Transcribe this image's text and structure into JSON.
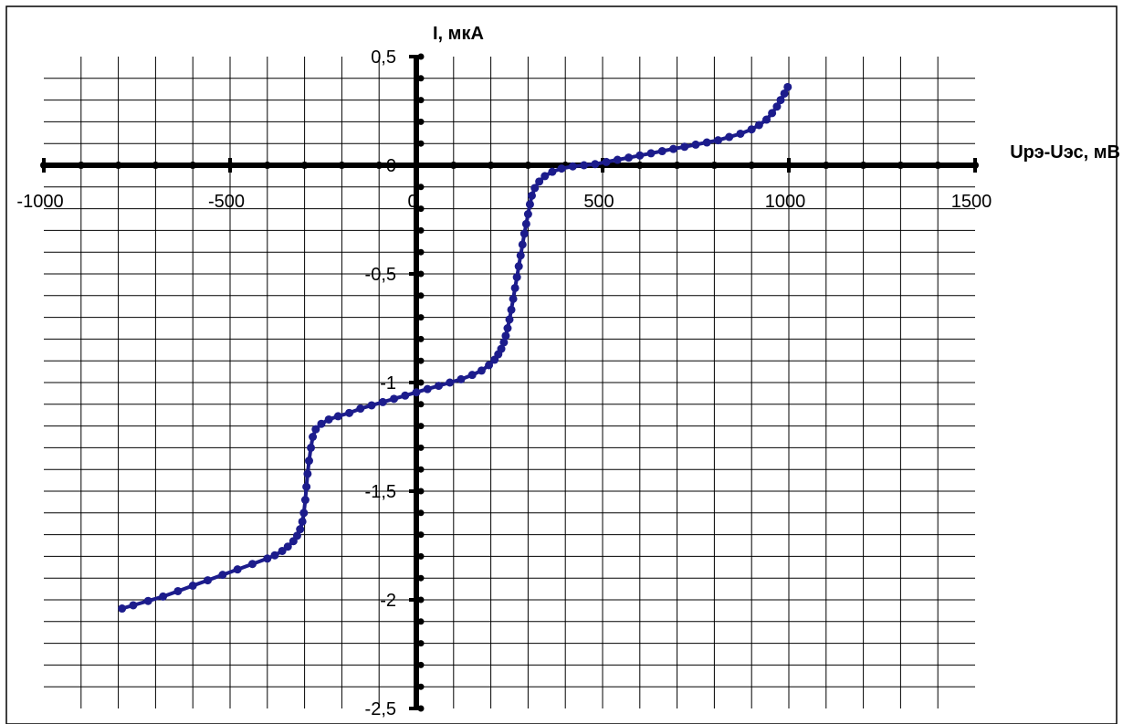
{
  "chart_data": {
    "type": "scatter",
    "title": "",
    "xlabel": "Uрэ-Uэс, мВ",
    "ylabel": "I, мкА",
    "xlim": [
      -1000,
      1500
    ],
    "ylim": [
      -2.5,
      0.5
    ],
    "x_major_ticks": [
      -1000,
      -500,
      0,
      500,
      1000,
      1500
    ],
    "x_tick_labels": [
      "-1000",
      "-500",
      "0",
      "500",
      "1000",
      "1500"
    ],
    "x_minor_step": 100,
    "y_major_ticks": [
      0.5,
      0,
      -0.5,
      -1,
      -1.5,
      -2,
      -2.5
    ],
    "y_tick_labels": [
      "0,5",
      "0",
      "-0,5",
      "-1",
      "-1,5",
      "-2",
      "-2,5"
    ],
    "y_minor_step": 0.1,
    "grid": true,
    "legend": "none",
    "series": [
      {
        "color": "#1c1c8c",
        "marker": "circle",
        "points": [
          [
            -790,
            -2.04
          ],
          [
            -760,
            -2.025
          ],
          [
            -720,
            -2.005
          ],
          [
            -680,
            -1.985
          ],
          [
            -640,
            -1.96
          ],
          [
            -600,
            -1.935
          ],
          [
            -560,
            -1.91
          ],
          [
            -520,
            -1.885
          ],
          [
            -480,
            -1.86
          ],
          [
            -440,
            -1.835
          ],
          [
            -400,
            -1.81
          ],
          [
            -380,
            -1.795
          ],
          [
            -360,
            -1.775
          ],
          [
            -345,
            -1.755
          ],
          [
            -330,
            -1.73
          ],
          [
            -320,
            -1.705
          ],
          [
            -312,
            -1.675
          ],
          [
            -306,
            -1.64
          ],
          [
            -302,
            -1.6
          ],
          [
            -298,
            -1.54
          ],
          [
            -295,
            -1.48
          ],
          [
            -292,
            -1.42
          ],
          [
            -288,
            -1.36
          ],
          [
            -283,
            -1.3
          ],
          [
            -278,
            -1.25
          ],
          [
            -270,
            -1.215
          ],
          [
            -255,
            -1.19
          ],
          [
            -235,
            -1.17
          ],
          [
            -210,
            -1.155
          ],
          [
            -180,
            -1.14
          ],
          [
            -150,
            -1.12
          ],
          [
            -120,
            -1.105
          ],
          [
            -90,
            -1.09
          ],
          [
            -60,
            -1.075
          ],
          [
            -30,
            -1.06
          ],
          [
            0,
            -1.045
          ],
          [
            30,
            -1.03
          ],
          [
            60,
            -1.015
          ],
          [
            90,
            -1.0
          ],
          [
            120,
            -0.985
          ],
          [
            150,
            -0.965
          ],
          [
            175,
            -0.945
          ],
          [
            195,
            -0.92
          ],
          [
            210,
            -0.895
          ],
          [
            220,
            -0.87
          ],
          [
            228,
            -0.845
          ],
          [
            235,
            -0.815
          ],
          [
            240,
            -0.785
          ],
          [
            245,
            -0.75
          ],
          [
            250,
            -0.71
          ],
          [
            255,
            -0.665
          ],
          [
            260,
            -0.615
          ],
          [
            265,
            -0.565
          ],
          [
            270,
            -0.515
          ],
          [
            275,
            -0.465
          ],
          [
            280,
            -0.415
          ],
          [
            285,
            -0.365
          ],
          [
            290,
            -0.315
          ],
          [
            295,
            -0.27
          ],
          [
            300,
            -0.225
          ],
          [
            305,
            -0.18
          ],
          [
            310,
            -0.14
          ],
          [
            318,
            -0.105
          ],
          [
            330,
            -0.075
          ],
          [
            345,
            -0.05
          ],
          [
            365,
            -0.03
          ],
          [
            390,
            -0.015
          ],
          [
            420,
            -0.005
          ],
          [
            450,
            0.0
          ],
          [
            480,
            0.005
          ],
          [
            510,
            0.015
          ],
          [
            540,
            0.025
          ],
          [
            570,
            0.035
          ],
          [
            600,
            0.045
          ],
          [
            630,
            0.055
          ],
          [
            660,
            0.065
          ],
          [
            690,
            0.075
          ],
          [
            720,
            0.085
          ],
          [
            750,
            0.095
          ],
          [
            780,
            0.105
          ],
          [
            810,
            0.115
          ],
          [
            840,
            0.13
          ],
          [
            870,
            0.145
          ],
          [
            900,
            0.165
          ],
          [
            920,
            0.185
          ],
          [
            940,
            0.21
          ],
          [
            955,
            0.24
          ],
          [
            968,
            0.27
          ],
          [
            978,
            0.3
          ],
          [
            988,
            0.33
          ],
          [
            997,
            0.36
          ]
        ]
      }
    ]
  },
  "style": {
    "line_color": "#1c1c8c",
    "axis_color": "#000000",
    "grid_color": "#000000",
    "background": "#ffffff"
  }
}
